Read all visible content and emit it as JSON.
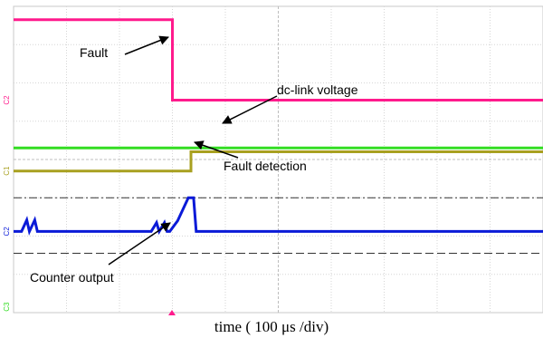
{
  "chart_data": {
    "type": "line",
    "x_label_prefix": "time",
    "x_label_unit": "( 100 μs /div)",
    "x_unit": "μs",
    "xlim": [
      0,
      1000
    ],
    "y_unit": "div",
    "ylim": [
      -4,
      4
    ],
    "grid": true,
    "series": [
      {
        "name": "Fault",
        "color": "#ff1a8c",
        "channel_tag": "C2",
        "x": [
          0,
          300,
          300,
          1000
        ],
        "y": [
          3.65,
          3.65,
          1.55,
          1.55
        ]
      },
      {
        "name": "dc-link voltage",
        "color": "#33dd22",
        "channel_tag": "",
        "x": [
          0,
          1000
        ],
        "y": [
          0.3,
          0.3
        ]
      },
      {
        "name": "Fault detection",
        "color": "#a8a020",
        "channel_tag": "C1",
        "x": [
          0,
          335,
          335,
          1000
        ],
        "y": [
          -0.3,
          -0.3,
          0.2,
          0.2
        ]
      },
      {
        "name": "Counter output",
        "color": "#0a1ad8",
        "channel_tag": "C2",
        "x": [
          0,
          15,
          25,
          30,
          40,
          45,
          55,
          260,
          270,
          275,
          285,
          290,
          295,
          310,
          330,
          340,
          345,
          1000
        ],
        "y": [
          -1.88,
          -1.88,
          -1.58,
          -1.88,
          -1.58,
          -1.88,
          -1.88,
          -1.88,
          -1.65,
          -1.88,
          -1.65,
          -1.88,
          -1.88,
          -1.6,
          -1.0,
          -1.0,
          -1.88,
          -1.88
        ]
      }
    ],
    "reference_lines": [
      {
        "style": "dash-dot",
        "y": -1.0
      },
      {
        "style": "dashed",
        "y": -2.45
      }
    ],
    "annotations": [
      {
        "text": "Fault",
        "target_series": "Fault"
      },
      {
        "text": "dc-link voltage",
        "target_series": "dc-link voltage"
      },
      {
        "text": "Fault detection",
        "target_series": "Fault detection"
      },
      {
        "text": "Counter output",
        "target_series": "Counter output"
      }
    ],
    "channel_markers": [
      "C2",
      "C1",
      "C2",
      "C3"
    ]
  }
}
